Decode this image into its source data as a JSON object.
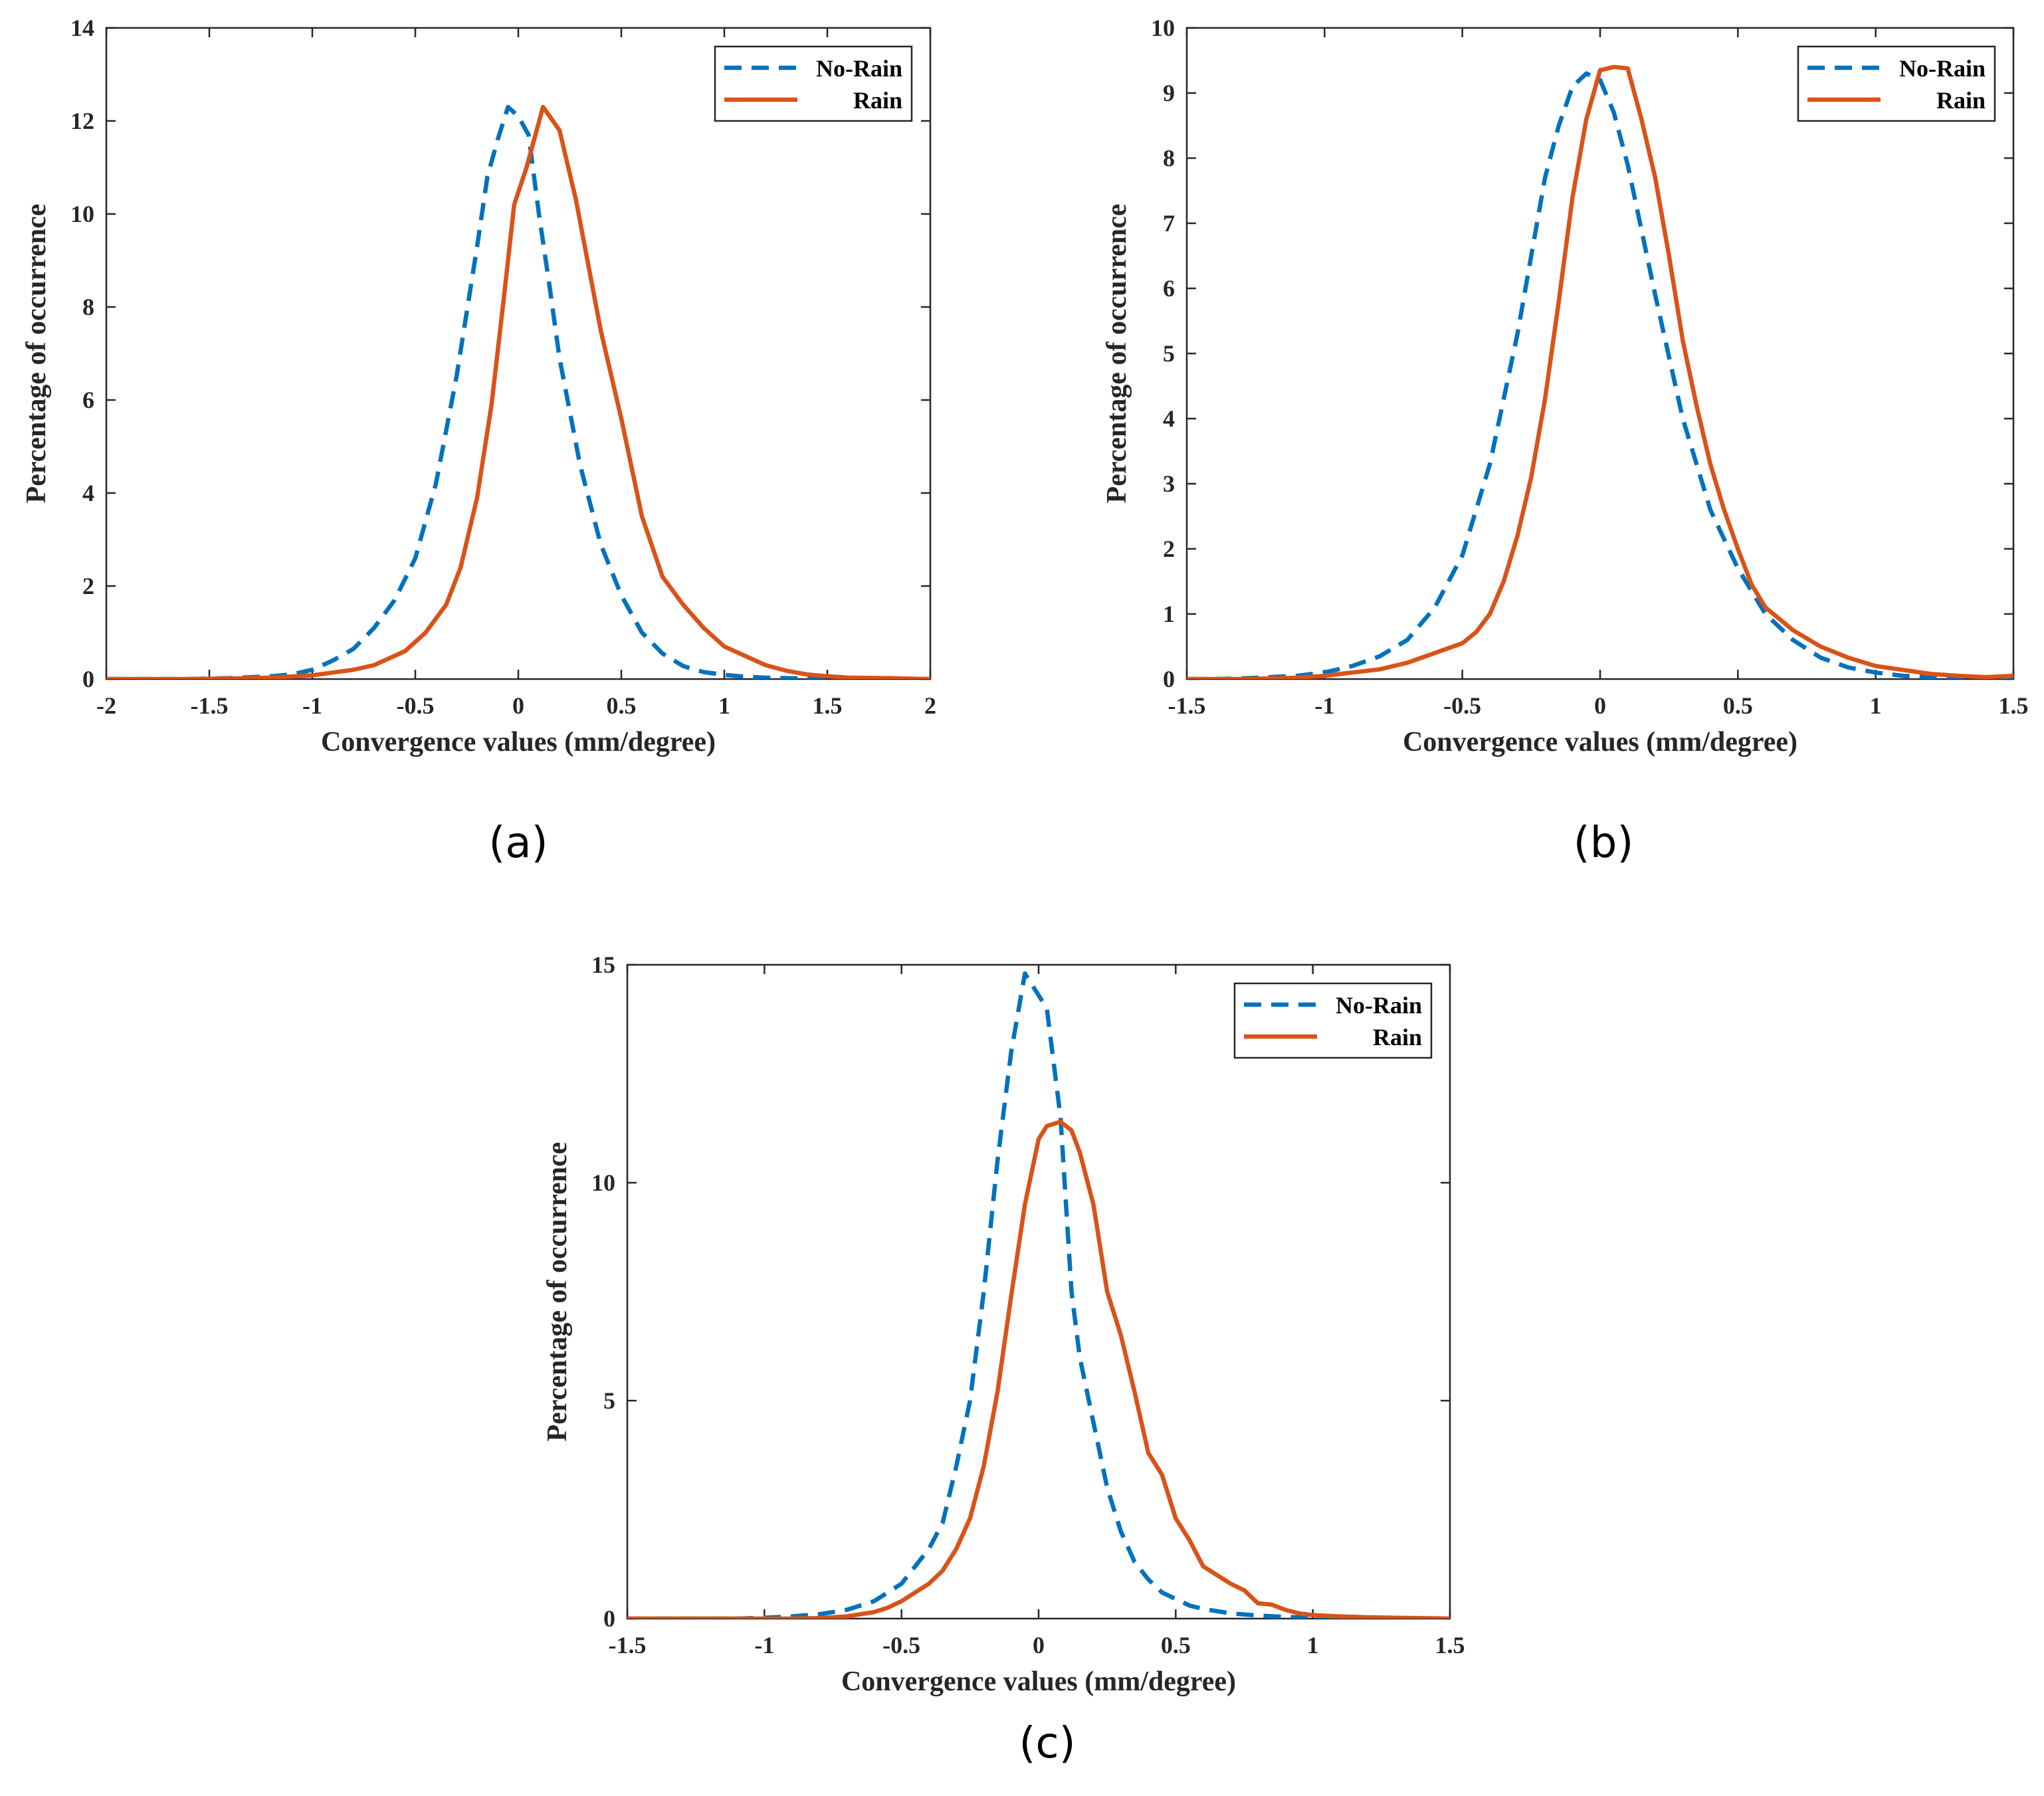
{
  "colors": {
    "no_rain": "#0072BD",
    "rain": "#D95319",
    "axis": "#262626"
  },
  "chart_data": [
    {
      "type": "line",
      "panel_label": "(a)",
      "xlabel": "Convergence values (mm/degree)",
      "ylabel": "Percentage of occurrence",
      "xlim": [
        -2,
        2
      ],
      "ylim": [
        0,
        14
      ],
      "xticks": [
        -2,
        -1.5,
        -1,
        -0.5,
        0,
        0.5,
        1,
        1.5,
        2
      ],
      "xtick_labels": [
        "-2",
        "-1.5",
        "-1",
        "-0.5",
        "0",
        "0.5",
        "1",
        "1.5",
        "2"
      ],
      "yticks": [
        0,
        2,
        4,
        6,
        8,
        10,
        12,
        14
      ],
      "ytick_labels": [
        "0",
        "2",
        "4",
        "6",
        "8",
        "10",
        "12",
        "14"
      ],
      "legend_position": "top-right",
      "series": [
        {
          "name": "No-Rain",
          "style": "dashed",
          "color_key": "no_rain",
          "x": [
            -2,
            -1.8,
            -1.6,
            -1.4,
            -1.2,
            -1.1,
            -1.0,
            -0.9,
            -0.8,
            -0.7,
            -0.6,
            -0.5,
            -0.4,
            -0.3,
            -0.2,
            -0.15,
            -0.1,
            -0.05,
            0.0,
            0.05,
            0.1,
            0.15,
            0.2,
            0.3,
            0.4,
            0.5,
            0.6,
            0.7,
            0.8,
            0.9,
            1.0,
            1.1,
            1.2,
            1.4,
            1.6,
            1.8,
            2.0
          ],
          "y": [
            0,
            0,
            0,
            0.02,
            0.06,
            0.1,
            0.2,
            0.4,
            0.65,
            1.1,
            1.7,
            2.6,
            4.2,
            6.5,
            9.3,
            10.8,
            11.6,
            12.3,
            12.1,
            11.7,
            10.0,
            8.5,
            6.9,
            4.6,
            2.9,
            1.8,
            1.0,
            0.55,
            0.28,
            0.15,
            0.09,
            0.05,
            0.03,
            0.01,
            0,
            0,
            0
          ]
        },
        {
          "name": "Rain",
          "style": "solid",
          "color_key": "rain",
          "x": [
            -2,
            -1.8,
            -1.6,
            -1.4,
            -1.2,
            -1.0,
            -0.9,
            -0.8,
            -0.7,
            -0.6,
            -0.55,
            -0.45,
            -0.35,
            -0.28,
            -0.2,
            -0.13,
            -0.07,
            -0.02,
            0.04,
            0.12,
            0.2,
            0.28,
            0.4,
            0.5,
            0.6,
            0.7,
            0.8,
            0.9,
            1.0,
            1.1,
            1.2,
            1.3,
            1.4,
            1.5,
            1.6,
            1.8,
            2.0
          ],
          "y": [
            0,
            0,
            0,
            0.01,
            0.03,
            0.08,
            0.14,
            0.2,
            0.3,
            0.5,
            0.6,
            1.0,
            1.6,
            2.4,
            3.9,
            5.9,
            8.2,
            10.2,
            11.0,
            12.3,
            11.8,
            10.3,
            7.5,
            5.6,
            3.5,
            2.2,
            1.6,
            1.1,
            0.7,
            0.5,
            0.3,
            0.18,
            0.1,
            0.06,
            0.03,
            0.02,
            0
          ]
        }
      ]
    },
    {
      "type": "line",
      "panel_label": "(b)",
      "xlabel": "Convergence values (mm/degree)",
      "ylabel": "Percentage of occurrence",
      "xlim": [
        -1.5,
        1.5
      ],
      "ylim": [
        0,
        10
      ],
      "xticks": [
        -1.5,
        -1,
        -0.5,
        0,
        0.5,
        1,
        1.5
      ],
      "xtick_labels": [
        "-1.5",
        "-1",
        "-0.5",
        "0",
        "0.5",
        "1",
        "1.5"
      ],
      "yticks": [
        0,
        1,
        2,
        3,
        4,
        5,
        6,
        7,
        8,
        9,
        10
      ],
      "ytick_labels": [
        "0",
        "1",
        "2",
        "3",
        "4",
        "5",
        "6",
        "7",
        "8",
        "9",
        "10"
      ],
      "legend_position": "top-right",
      "series": [
        {
          "name": "No-Rain",
          "style": "dashed",
          "color_key": "no_rain",
          "x": [
            -1.5,
            -1.4,
            -1.3,
            -1.2,
            -1.1,
            -1.0,
            -0.9,
            -0.8,
            -0.7,
            -0.6,
            -0.5,
            -0.4,
            -0.3,
            -0.2,
            -0.15,
            -0.1,
            -0.05,
            0.0,
            0.05,
            0.1,
            0.2,
            0.3,
            0.4,
            0.5,
            0.6,
            0.7,
            0.8,
            0.9,
            1.0,
            1.1,
            1.2,
            1.3,
            1.4,
            1.5
          ],
          "y": [
            0,
            0,
            0.01,
            0.03,
            0.05,
            0.1,
            0.2,
            0.35,
            0.6,
            1.1,
            1.9,
            3.3,
            5.3,
            7.7,
            8.5,
            9.1,
            9.3,
            9.2,
            8.7,
            7.9,
            5.9,
            4.0,
            2.6,
            1.7,
            1.0,
            0.6,
            0.33,
            0.18,
            0.1,
            0.05,
            0.03,
            0.01,
            0,
            0
          ]
        },
        {
          "name": "Rain",
          "style": "solid",
          "color_key": "rain",
          "x": [
            -1.5,
            -1.4,
            -1.3,
            -1.2,
            -1.1,
            -1.0,
            -0.9,
            -0.8,
            -0.7,
            -0.6,
            -0.5,
            -0.45,
            -0.4,
            -0.35,
            -0.3,
            -0.25,
            -0.2,
            -0.15,
            -0.1,
            -0.05,
            0.0,
            0.05,
            0.1,
            0.15,
            0.2,
            0.25,
            0.3,
            0.35,
            0.4,
            0.45,
            0.5,
            0.55,
            0.6,
            0.7,
            0.8,
            0.9,
            1.0,
            1.1,
            1.2,
            1.3,
            1.4,
            1.5
          ],
          "y": [
            0,
            0,
            0,
            0.01,
            0.02,
            0.05,
            0.1,
            0.15,
            0.25,
            0.4,
            0.55,
            0.72,
            1.0,
            1.5,
            2.2,
            3.1,
            4.3,
            5.8,
            7.4,
            8.6,
            9.35,
            9.4,
            9.38,
            8.6,
            7.7,
            6.5,
            5.2,
            4.2,
            3.3,
            2.6,
            2.0,
            1.45,
            1.1,
            0.75,
            0.5,
            0.33,
            0.2,
            0.14,
            0.08,
            0.05,
            0.03,
            0.05
          ]
        }
      ]
    },
    {
      "type": "line",
      "panel_label": "(c)",
      "xlabel": "Convergence values (mm/degree)",
      "ylabel": "Percentage of occurrence",
      "xlim": [
        -1.5,
        1.5
      ],
      "ylim": [
        0,
        15
      ],
      "xticks": [
        -1.5,
        -1,
        -0.5,
        0,
        0.5,
        1,
        1.5
      ],
      "xtick_labels": [
        "-1.5",
        "-1",
        "-0.5",
        "0",
        "0.5",
        "1",
        "1.5"
      ],
      "yticks": [
        0,
        5,
        10,
        15
      ],
      "ytick_labels": [
        "0",
        "5",
        "10",
        "15"
      ],
      "legend_position": "top-right",
      "series": [
        {
          "name": "No-Rain",
          "style": "dashed",
          "color_key": "no_rain",
          "x": [
            -1.5,
            -1.3,
            -1.1,
            -1.0,
            -0.9,
            -0.8,
            -0.7,
            -0.6,
            -0.5,
            -0.4,
            -0.35,
            -0.3,
            -0.25,
            -0.2,
            -0.15,
            -0.1,
            -0.05,
            -0.02,
            0.03,
            0.08,
            0.12,
            0.15,
            0.2,
            0.25,
            0.3,
            0.35,
            0.4,
            0.45,
            0.5,
            0.55,
            0.6,
            0.7,
            0.8,
            0.9,
            1.0,
            1.1,
            1.2,
            1.3,
            1.5
          ],
          "y": [
            0,
            0,
            0,
            0.02,
            0.05,
            0.1,
            0.2,
            0.4,
            0.8,
            1.6,
            2.2,
            3.5,
            5.0,
            7.5,
            10.5,
            13.0,
            14.8,
            14.5,
            14.0,
            11.5,
            7.5,
            6.0,
            4.5,
            3.0,
            2.0,
            1.3,
            0.9,
            0.6,
            0.45,
            0.3,
            0.22,
            0.12,
            0.07,
            0.04,
            0.02,
            0.01,
            0,
            0,
            0
          ]
        },
        {
          "name": "Rain",
          "style": "solid",
          "color_key": "rain",
          "x": [
            -1.5,
            -1.3,
            -1.1,
            -1.0,
            -0.9,
            -0.8,
            -0.7,
            -0.65,
            -0.6,
            -0.55,
            -0.5,
            -0.45,
            -0.4,
            -0.35,
            -0.3,
            -0.25,
            -0.2,
            -0.15,
            -0.1,
            -0.05,
            0.0,
            0.03,
            0.08,
            0.12,
            0.15,
            0.2,
            0.25,
            0.3,
            0.35,
            0.4,
            0.45,
            0.5,
            0.55,
            0.6,
            0.65,
            0.7,
            0.75,
            0.8,
            0.85,
            0.9,
            0.95,
            1.0,
            1.1,
            1.2,
            1.3,
            1.5
          ],
          "y": [
            0,
            0,
            0,
            0,
            0,
            0.01,
            0.05,
            0.1,
            0.15,
            0.25,
            0.4,
            0.6,
            0.8,
            1.1,
            1.6,
            2.3,
            3.5,
            5.2,
            7.4,
            9.5,
            11.0,
            11.3,
            11.4,
            11.2,
            10.7,
            9.5,
            7.5,
            6.5,
            5.2,
            3.8,
            3.3,
            2.3,
            1.8,
            1.2,
            1.0,
            0.8,
            0.65,
            0.35,
            0.32,
            0.2,
            0.12,
            0.08,
            0.05,
            0.03,
            0.02,
            0
          ]
        }
      ]
    }
  ]
}
